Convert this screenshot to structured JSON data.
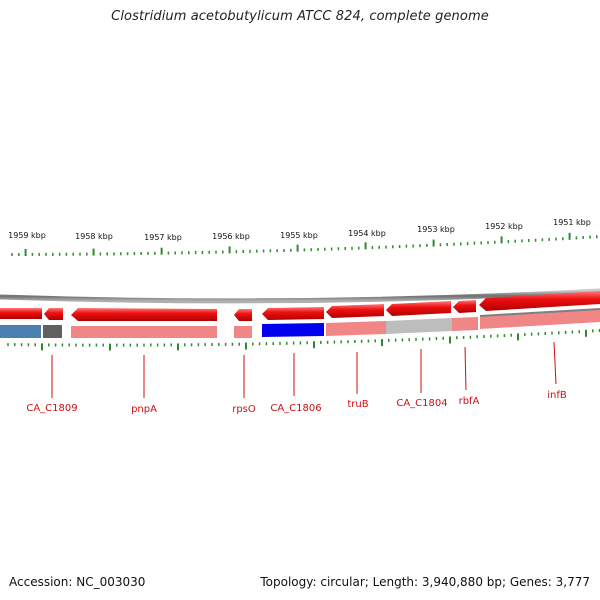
{
  "title": "Clostridium acetobutylicum ATCC 824, complete genome",
  "footer": {
    "accession": "Accession: NC_003030",
    "info": "Topology: circular; Length: 3,940,880 bp; Genes: 3,777"
  },
  "ruler": {
    "labels": [
      "1959 kbp",
      "1958 kbp",
      "1957 kbp",
      "1956 kbp",
      "1955 kbp",
      "1954 kbp",
      "1953 kbp",
      "1952 kbp",
      "1951 kbp"
    ],
    "tick_color": "#2e8b2e"
  },
  "colors": {
    "gene_arrow": "#ee1111",
    "gene_label": "#cc1111",
    "backbone": "#808080"
  },
  "genes": [
    {
      "label": "CA_C1809",
      "strand": "reverse"
    },
    {
      "label": "pnpA",
      "strand": "reverse"
    },
    {
      "label": "rpsO",
      "strand": "reverse"
    },
    {
      "label": "CA_C1806",
      "strand": "reverse"
    },
    {
      "label": "truB",
      "strand": "reverse"
    },
    {
      "label": "CA_C1804",
      "strand": "reverse"
    },
    {
      "label": "rbfA",
      "strand": "reverse"
    },
    {
      "label": "infB",
      "strand": "reverse"
    }
  ]
}
